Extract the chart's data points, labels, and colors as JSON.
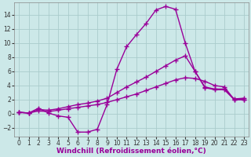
{
  "background_color": "#cce8e8",
  "grid_color": "#aacccc",
  "line_color": "#990099",
  "marker": "+",
  "marker_size": 4,
  "line_width": 1.0,
  "xlabel": "Windchill (Refroidissement éolien,°C)",
  "xlabel_fontsize": 6.5,
  "tick_fontsize": 5.5,
  "xlim": [
    -0.5,
    23.5
  ],
  "ylim": [
    -3.2,
    15.8
  ],
  "yticks": [
    -2,
    0,
    2,
    4,
    6,
    8,
    10,
    12,
    14
  ],
  "xticks": [
    0,
    1,
    2,
    3,
    4,
    5,
    6,
    7,
    8,
    9,
    10,
    11,
    12,
    13,
    14,
    15,
    16,
    17,
    18,
    19,
    20,
    21,
    22,
    23
  ],
  "curve1_x": [
    0,
    1,
    2,
    3,
    4,
    5,
    6,
    7,
    8,
    9,
    10,
    11,
    12,
    13,
    14,
    15,
    16,
    17,
    18,
    19,
    20,
    21,
    22,
    23
  ],
  "curve1_y": [
    0.2,
    0.1,
    0.8,
    0.1,
    -0.3,
    -0.5,
    -2.6,
    -2.6,
    -2.2,
    1.3,
    6.3,
    9.5,
    11.2,
    12.8,
    14.7,
    15.2,
    14.8,
    10.0,
    6.0,
    3.8,
    3.5,
    3.5,
    2.1,
    2.2
  ],
  "curve2_x": [
    0,
    1,
    2,
    3,
    4,
    5,
    6,
    7,
    8,
    9,
    10,
    11,
    12,
    13,
    14,
    15,
    16,
    17,
    18,
    19,
    20,
    21,
    22,
    23
  ],
  "curve2_y": [
    0.2,
    0.1,
    0.6,
    0.5,
    0.7,
    1.0,
    1.3,
    1.5,
    1.8,
    2.2,
    3.0,
    3.8,
    4.5,
    5.2,
    6.0,
    6.8,
    7.6,
    8.2,
    6.0,
    3.7,
    3.4,
    3.4,
    2.0,
    2.0
  ],
  "curve3_x": [
    0,
    1,
    2,
    3,
    4,
    5,
    6,
    7,
    8,
    9,
    10,
    11,
    12,
    13,
    14,
    15,
    16,
    17,
    18,
    19,
    20,
    21,
    22,
    23
  ],
  "curve3_y": [
    0.2,
    0.1,
    0.4,
    0.3,
    0.5,
    0.7,
    0.9,
    1.1,
    1.3,
    1.6,
    2.0,
    2.4,
    2.8,
    3.3,
    3.8,
    4.3,
    4.8,
    5.1,
    5.0,
    4.6,
    4.0,
    3.8,
    2.0,
    2.0
  ]
}
